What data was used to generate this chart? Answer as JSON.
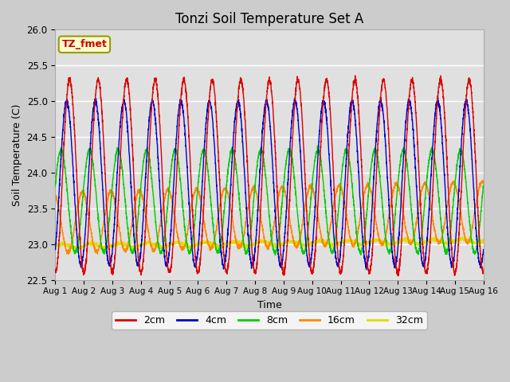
{
  "title": "Tonzi Soil Temperature Set A",
  "xlabel": "Time",
  "ylabel": "Soil Temperature (C)",
  "ylim": [
    22.5,
    26.0
  ],
  "xlim_days": 15,
  "legend_label": "TZ_fmet",
  "series": {
    "2cm": {
      "color": "#dd0000",
      "label": "2cm"
    },
    "4cm": {
      "color": "#0000cc",
      "label": "4cm"
    },
    "8cm": {
      "color": "#00cc00",
      "label": "8cm"
    },
    "16cm": {
      "color": "#ff8800",
      "label": "16cm"
    },
    "32cm": {
      "color": "#dddd00",
      "label": "32cm"
    }
  },
  "background_color": "#cccccc",
  "plot_bg_color": "#e0e0e0",
  "n_points": 3600,
  "days": 15,
  "base_2cm": 23.95,
  "base_4cm": 23.85,
  "base_8cm": 23.6,
  "base_16cm": 23.3,
  "base_32cm": 22.97,
  "amp_2cm": 1.35,
  "amp_4cm": 1.15,
  "amp_8cm": 0.72,
  "amp_16cm": 0.42,
  "amp_32cm": 0.03,
  "phase_2cm": -0.25,
  "phase_4cm": -0.15,
  "phase_8cm": 0.05,
  "phase_16cm": 0.3,
  "phase_32cm": 0.0,
  "trend_2cm": 0.0,
  "trend_4cm": 0.0,
  "trend_8cm": 0.0,
  "trend_16cm": 0.01,
  "trend_32cm": 0.005,
  "xtick_labels": [
    "Aug 1",
    "Aug 2",
    "Aug 3",
    "Aug 4",
    "Aug 5",
    "Aug 6",
    "Aug 7",
    "Aug 8",
    "Aug 9",
    "Aug 10",
    "Aug 11",
    "Aug 12",
    "Aug 13",
    "Aug 14",
    "Aug 15",
    "Aug 16"
  ],
  "xtick_positions": [
    0,
    1,
    2,
    3,
    4,
    5,
    6,
    7,
    8,
    9,
    10,
    11,
    12,
    13,
    14,
    15
  ],
  "grid_color": "#ffffff",
  "legend_box_color": "#ffffcc",
  "legend_box_edge": "#999900",
  "legend_text_color": "#cc0000"
}
